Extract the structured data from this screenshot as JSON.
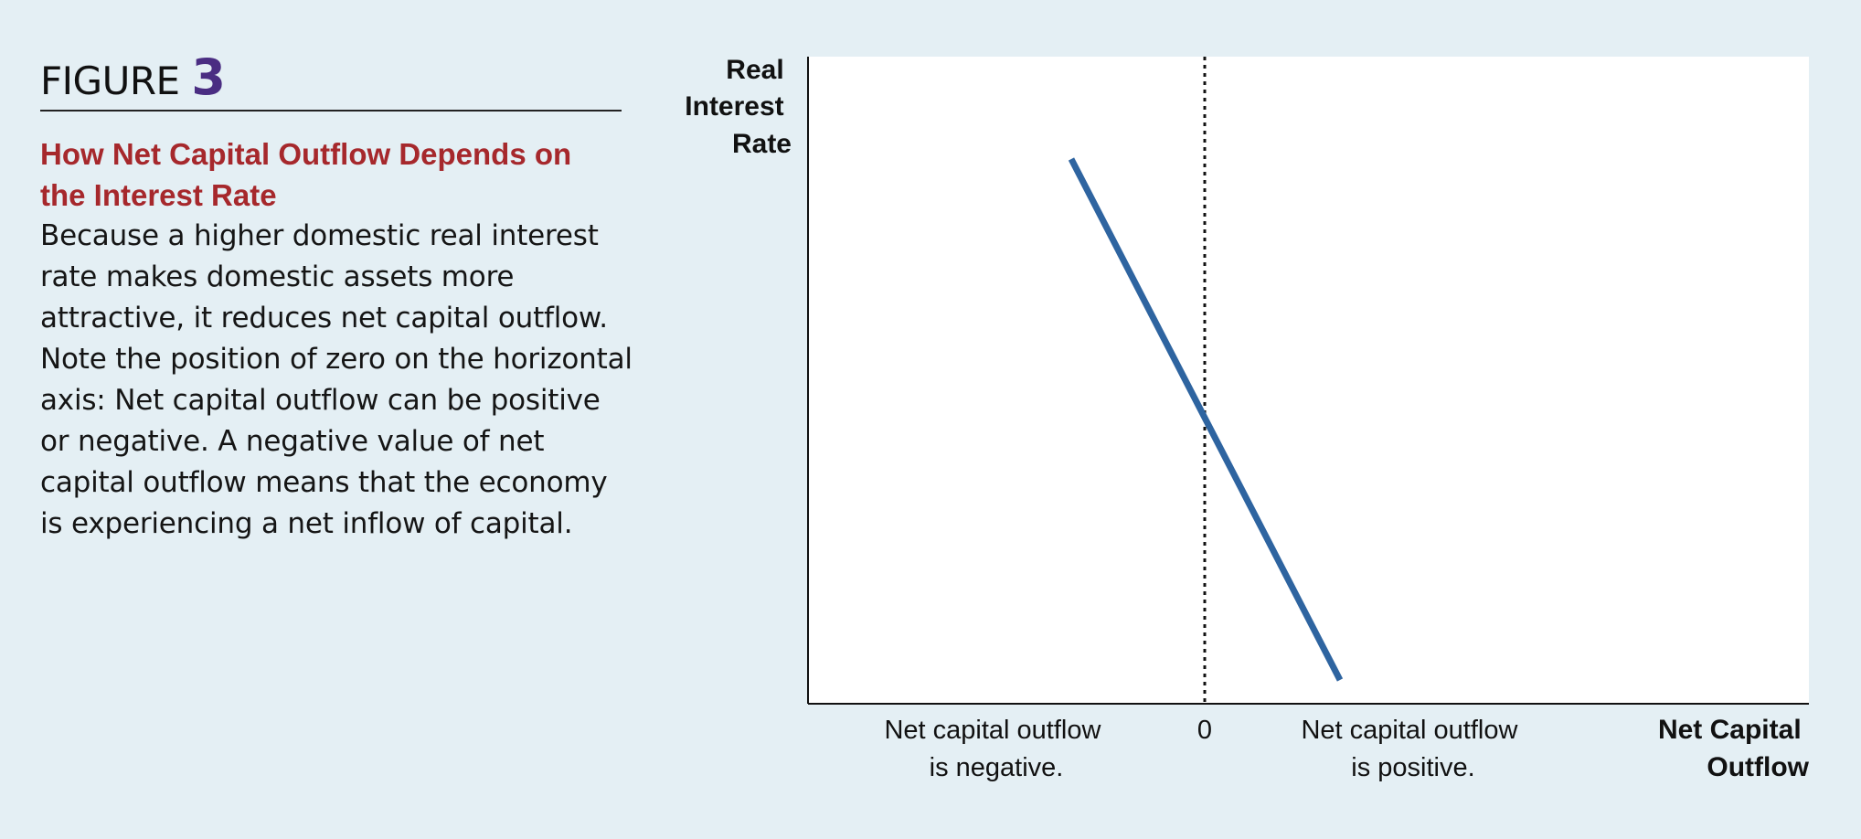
{
  "figure": {
    "label": "FIGURE",
    "number": "3",
    "title": "How Net Capital Outflow Depends on the Interest Rate",
    "body": "Because a higher domestic real interest rate makes domestic assets more attractive, it reduces net capital outflow. Note the position of zero on the horizontal axis: Net capital outflow can be positive or negative. A negative value of net capital outflow means that the economy is experiencing a net inflow of capital."
  },
  "diagram": {
    "y_axis_label": [
      "Real",
      "Interest",
      "Rate"
    ],
    "x_axis_label": [
      "Net Capital",
      "Outflow"
    ],
    "zero_label": "0",
    "negative_label": [
      "Net capital outflow",
      "is negative."
    ],
    "positive_label": [
      "Net capital outflow",
      "is positive."
    ],
    "line_color": "#2e64a0"
  }
}
